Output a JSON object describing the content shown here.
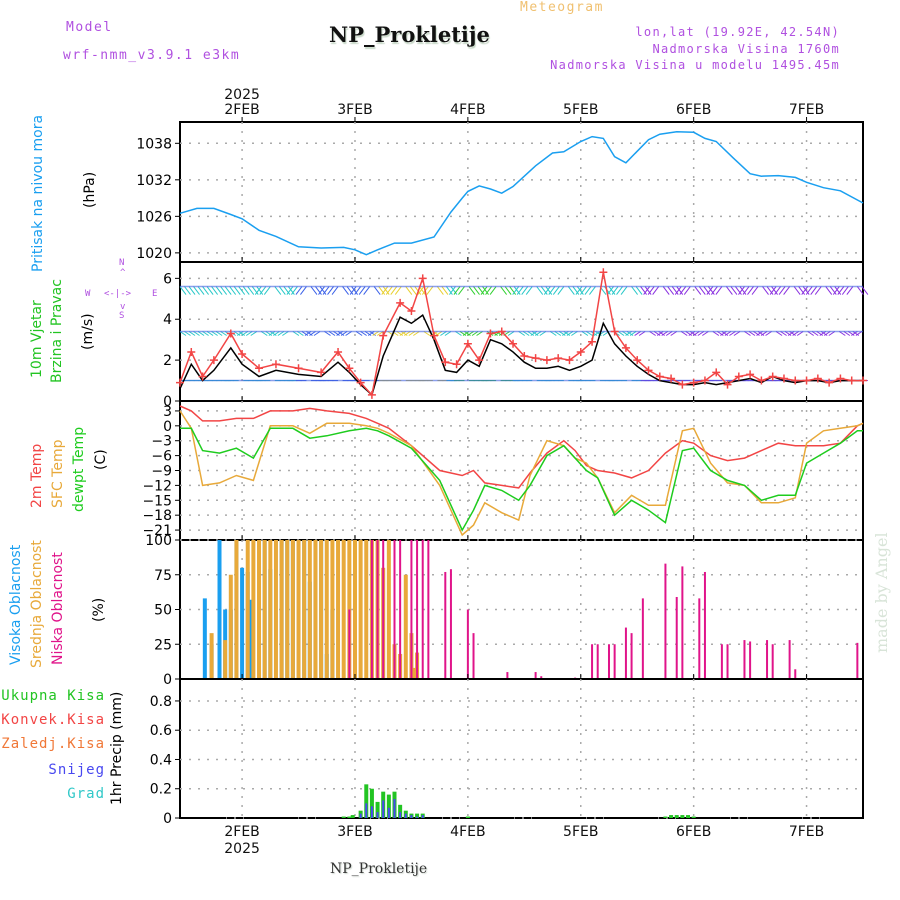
{
  "header": {
    "model_label": "Model",
    "model_name": "wrf-nmm_v3.9.1 e3km",
    "title": "NP_Prokletije",
    "meteogram_label": "Meteogram",
    "lonlat": "lon,lat (19.92E, 42.54N)",
    "elevation": "Nadmorska Visina 1760m",
    "model_elevation": "Nadmorska Visina u modelu 1495.45m",
    "footer_title": "NP_Prokletije",
    "watermark": "made by Angel"
  },
  "colors": {
    "pressure": "#1a9ff0",
    "temp2m": "#f24545",
    "sfc_temp": "#e8a93a",
    "dewpt": "#1ecc1e",
    "cloud_high": "#1a9ff0",
    "cloud_mid": "#e8a93a",
    "cloud_low": "#e0148a",
    "precip_total": "#22c422",
    "precip_conv": "#f24545",
    "precip_frz": "#f07838",
    "precip_snow": "#4848f0",
    "precip_hail": "#30c8c8",
    "labels_purple": "#b050e0",
    "meteogram_label": "#f0c070",
    "wind_speed_line": "#000000",
    "wind_gust": "#f24545"
  },
  "time_axis": {
    "year_label": "2025",
    "day_labels": [
      "2FEB",
      "3FEB",
      "4FEB",
      "5FEB",
      "6FEB",
      "7FEB"
    ],
    "start_day_offset": -0.55,
    "end_day_offset": 5.5
  },
  "chart_data": [
    {
      "type": "line",
      "name": "pressure",
      "ylabel_title": "Pritisak na nivou mora",
      "ylabel_unit": "(hPa)",
      "yticks": [
        1020,
        1026,
        1032,
        1038
      ],
      "ylim": [
        1018.5,
        1041.5
      ],
      "grid": true,
      "x_days": [
        -0.55,
        -0.4,
        -0.25,
        -0.1,
        0.0,
        0.15,
        0.3,
        0.5,
        0.7,
        0.9,
        1.0,
        1.1,
        1.2,
        1.35,
        1.5,
        1.7,
        1.85,
        1.95,
        2.0,
        2.1,
        2.2,
        2.3,
        2.4,
        2.5,
        2.6,
        2.75,
        2.85,
        3.0,
        3.1,
        3.2,
        3.3,
        3.4,
        3.6,
        3.7,
        3.85,
        4.0,
        4.1,
        4.2,
        4.35,
        4.5,
        4.6,
        4.75,
        4.9,
        5.0,
        5.15,
        5.3,
        5.5
      ],
      "series": [
        {
          "name": "SLP",
          "values": [
            1026.5,
            1027.3,
            1027.3,
            1026.3,
            1025.6,
            1023.7,
            1022.7,
            1021.0,
            1020.8,
            1020.9,
            1020.5,
            1019.7,
            1020.5,
            1021.6,
            1021.6,
            1022.6,
            1026.7,
            1029.0,
            1030.1,
            1031.0,
            1030.5,
            1029.8,
            1030.9,
            1032.6,
            1034.3,
            1036.4,
            1036.6,
            1038.3,
            1039.1,
            1038.8,
            1035.8,
            1034.8,
            1038.6,
            1039.5,
            1039.9,
            1039.8,
            1038.8,
            1038.3,
            1035.6,
            1033.0,
            1032.6,
            1032.7,
            1032.4,
            1031.6,
            1030.7,
            1030.2,
            1028.2
          ]
        }
      ]
    },
    {
      "type": "line",
      "name": "wind",
      "ylabel_title": [
        "10m Vjetar",
        "Brzina i Pravac"
      ],
      "ylabel_unit": "(m/s)",
      "compass": {
        "N": "N",
        "S": "S",
        "W": "W",
        "E": "E"
      },
      "yticks": [
        0,
        2,
        4,
        6
      ],
      "ylim": [
        0,
        6.8
      ],
      "grid": true,
      "x_days": [
        -0.55,
        -0.45,
        -0.35,
        -0.25,
        -0.1,
        0.0,
        0.15,
        0.3,
        0.5,
        0.7,
        0.85,
        0.95,
        1.05,
        1.15,
        1.25,
        1.4,
        1.5,
        1.6,
        1.7,
        1.8,
        1.9,
        2.0,
        2.1,
        2.2,
        2.3,
        2.4,
        2.5,
        2.6,
        2.7,
        2.8,
        2.9,
        3.0,
        3.1,
        3.2,
        3.3,
        3.4,
        3.5,
        3.6,
        3.7,
        3.8,
        3.9,
        4.0,
        4.1,
        4.2,
        4.3,
        4.4,
        4.5,
        4.6,
        4.7,
        4.8,
        4.9,
        5.0,
        5.1,
        5.2,
        5.3,
        5.4,
        5.5
      ],
      "series": [
        {
          "name": "speed",
          "values": [
            0.6,
            1.8,
            1.0,
            1.5,
            2.6,
            1.8,
            1.2,
            1.5,
            1.3,
            1.2,
            1.9,
            1.4,
            0.8,
            0.3,
            2.2,
            4.1,
            3.8,
            4.2,
            3.0,
            1.5,
            1.4,
            2.0,
            1.7,
            3.0,
            2.8,
            2.4,
            1.9,
            1.6,
            1.6,
            1.7,
            1.5,
            1.7,
            2.0,
            3.8,
            2.8,
            2.2,
            1.7,
            1.3,
            1.0,
            0.9,
            0.8,
            0.8,
            0.9,
            0.8,
            0.9,
            1.0,
            1.1,
            0.9,
            1.2,
            1.0,
            0.9,
            1.0,
            1.0,
            0.9,
            1.0,
            1.0,
            1.0
          ]
        },
        {
          "name": "gust",
          "values": [
            0.9,
            2.4,
            1.2,
            2.0,
            3.3,
            2.3,
            1.6,
            1.8,
            1.6,
            1.4,
            2.4,
            1.6,
            0.9,
            0.3,
            3.2,
            4.8,
            4.4,
            6.0,
            3.2,
            1.9,
            1.8,
            2.8,
            2.0,
            3.3,
            3.4,
            2.8,
            2.2,
            2.1,
            2.0,
            2.1,
            2.0,
            2.4,
            2.9,
            6.3,
            3.4,
            2.6,
            2.0,
            1.5,
            1.2,
            1.1,
            0.8,
            0.9,
            1.0,
            1.4,
            0.8,
            1.2,
            1.3,
            1.0,
            1.2,
            1.1,
            1.0,
            1.0,
            1.1,
            0.9,
            1.1,
            1.0,
            1.0
          ]
        }
      ]
    },
    {
      "type": "line",
      "name": "temperature",
      "ylabel_title": [
        "2m Temp",
        "SFC Temp",
        "dewpt Temp"
      ],
      "ylabel_unit": "(C)",
      "yticks": [
        3,
        0,
        -3,
        -6,
        -9,
        -12,
        -15,
        -18,
        -21
      ],
      "ylim": [
        -23,
        5
      ],
      "grid": true,
      "x_days": [
        -0.55,
        -0.45,
        -0.35,
        -0.2,
        -0.05,
        0.1,
        0.25,
        0.3,
        0.45,
        0.6,
        0.75,
        0.95,
        1.1,
        1.2,
        1.3,
        1.5,
        1.75,
        1.95,
        2.05,
        2.15,
        2.3,
        2.45,
        2.55,
        2.7,
        2.85,
        2.95,
        3.05,
        3.15,
        3.3,
        3.45,
        3.6,
        3.75,
        3.9,
        4.0,
        4.15,
        4.3,
        4.45,
        4.6,
        4.75,
        4.9,
        5.0,
        5.15,
        5.3,
        5.45,
        5.5
      ],
      "series": [
        {
          "name": "2m Temp",
          "values": [
            4.0,
            3.0,
            1.0,
            1.0,
            1.5,
            1.5,
            3.0,
            3.0,
            3.0,
            3.5,
            3.0,
            2.5,
            1.5,
            0.5,
            -0.5,
            -4.0,
            -9.0,
            -10.0,
            -9.0,
            -11.5,
            -12.0,
            -12.5,
            -9.5,
            -5.5,
            -3.0,
            -5.0,
            -8.0,
            -9.0,
            -9.5,
            -10.5,
            -9.0,
            -5.5,
            -3.0,
            -3.5,
            -6.0,
            -7.0,
            -6.5,
            -5.0,
            -3.5,
            -4.0,
            -4.0,
            -4.0,
            -3.5,
            0.0,
            0.5
          ]
        },
        {
          "name": "SFC Temp",
          "values": [
            3.0,
            -0.5,
            -12.0,
            -11.5,
            -10.0,
            -11.0,
            0.0,
            0.0,
            0.0,
            -1.5,
            0.5,
            0.5,
            0.0,
            -0.5,
            -1.5,
            -4.0,
            -12.0,
            -22.0,
            -20.0,
            -15.5,
            -17.5,
            -19.0,
            -10.0,
            -3.0,
            -4.0,
            -6.5,
            -7.5,
            -10.5,
            -17.5,
            -14.0,
            -16.0,
            -16.0,
            -1.0,
            -0.5,
            -7.5,
            -11.5,
            -12.0,
            -15.5,
            -15.5,
            -14.5,
            -3.5,
            -1.0,
            -0.5,
            0.0,
            0.5
          ]
        },
        {
          "name": "dewpt Temp",
          "values": [
            -0.5,
            -0.5,
            -5.0,
            -5.5,
            -4.5,
            -6.5,
            -0.5,
            -0.5,
            -0.5,
            -2.5,
            -2.0,
            -1.0,
            -0.5,
            -1.0,
            -2.0,
            -4.5,
            -11.0,
            -21.0,
            -17.0,
            -12.0,
            -13.0,
            -15.0,
            -12.0,
            -6.0,
            -4.0,
            -6.5,
            -9.0,
            -10.5,
            -18.0,
            -15.0,
            -17.0,
            -19.5,
            -5.0,
            -4.5,
            -9.0,
            -11.0,
            -12.0,
            -15.0,
            -14.0,
            -14.0,
            -7.5,
            -5.5,
            -3.5,
            -1.0,
            -1.0
          ]
        }
      ]
    },
    {
      "type": "bar",
      "name": "cloud_cover",
      "ylabel_title": [
        "Visoka Oblacnost",
        "Srednja Oblacnost",
        "Niska Oblacnost"
      ],
      "ylabel_unit": "(%)",
      "yticks": [
        0,
        25,
        50,
        75,
        100
      ],
      "ylim": [
        0,
        100
      ],
      "grid": true,
      "series": [
        {
          "name": "Visoka Oblacnost",
          "points": [
            [
              -0.33,
              58
            ],
            [
              -0.27,
              25
            ],
            [
              -0.2,
              100
            ],
            [
              -0.15,
              50
            ],
            [
              -0.1,
              50
            ],
            [
              -0.05,
              100
            ],
            [
              0.0,
              80
            ],
            [
              0.05,
              77
            ],
            [
              0.08,
              57
            ],
            [
              0.2,
              100
            ],
            [
              0.25,
              79
            ],
            [
              0.35,
              100
            ],
            [
              0.4,
              100
            ],
            [
              0.45,
              100
            ],
            [
              0.55,
              100
            ],
            [
              0.6,
              70
            ],
            [
              0.65,
              100
            ],
            [
              0.7,
              100
            ],
            [
              0.75,
              18
            ],
            [
              0.8,
              50
            ]
          ]
        },
        {
          "name": "Srednja Oblacnost",
          "points": [
            [
              -0.27,
              33
            ],
            [
              -0.15,
              28
            ],
            [
              -0.1,
              75
            ],
            [
              -0.05,
              100
            ],
            [
              0.05,
              100
            ],
            [
              0.1,
              100
            ],
            [
              0.15,
              100
            ],
            [
              0.2,
              100
            ],
            [
              0.25,
              100
            ],
            [
              0.3,
              100
            ],
            [
              0.35,
              100
            ],
            [
              0.4,
              100
            ],
            [
              0.45,
              100
            ],
            [
              0.5,
              100
            ],
            [
              0.55,
              100
            ],
            [
              0.6,
              100
            ],
            [
              0.65,
              100
            ],
            [
              0.7,
              100
            ],
            [
              0.75,
              100
            ],
            [
              0.8,
              100
            ],
            [
              0.85,
              100
            ],
            [
              0.9,
              100
            ],
            [
              0.95,
              100
            ],
            [
              1.0,
              100
            ],
            [
              1.05,
              100
            ],
            [
              1.1,
              100
            ],
            [
              1.15,
              100
            ],
            [
              1.2,
              100
            ],
            [
              1.25,
              80
            ],
            [
              1.3,
              100
            ],
            [
              1.35,
              25
            ],
            [
              1.4,
              18
            ],
            [
              1.45,
              75
            ],
            [
              1.5,
              33
            ],
            [
              1.53,
              8
            ],
            [
              1.55,
              19
            ]
          ]
        },
        {
          "name": "Niska Oblacnost",
          "points": [
            [
              0.95,
              50
            ],
            [
              1.15,
              100
            ],
            [
              1.2,
              100
            ],
            [
              1.25,
              100
            ],
            [
              1.35,
              100
            ],
            [
              1.4,
              100
            ],
            [
              1.5,
              100
            ],
            [
              1.55,
              100
            ],
            [
              1.6,
              100
            ],
            [
              1.65,
              100
            ],
            [
              1.8,
              77
            ],
            [
              1.85,
              79
            ],
            [
              2.0,
              50
            ],
            [
              2.05,
              33
            ],
            [
              2.35,
              5
            ],
            [
              2.6,
              5
            ],
            [
              2.65,
              2
            ],
            [
              2.95,
              1
            ],
            [
              3.1,
              25
            ],
            [
              3.15,
              25
            ],
            [
              3.25,
              25
            ],
            [
              3.3,
              25
            ],
            [
              3.4,
              37
            ],
            [
              3.45,
              33
            ],
            [
              3.55,
              58
            ],
            [
              3.75,
              83
            ],
            [
              3.85,
              59
            ],
            [
              3.9,
              81
            ],
            [
              4.05,
              58
            ],
            [
              4.1,
              77
            ],
            [
              4.25,
              25
            ],
            [
              4.3,
              25
            ],
            [
              4.45,
              28
            ],
            [
              4.5,
              27
            ],
            [
              4.65,
              28
            ],
            [
              4.7,
              25
            ],
            [
              4.85,
              28
            ],
            [
              4.9,
              7
            ],
            [
              5.45,
              26
            ]
          ]
        }
      ]
    },
    {
      "type": "bar",
      "name": "precipitation",
      "ylabel_unit": "1hr Precip (mm)",
      "legend": [
        "Ukupna Kisa",
        "Konvek.Kisa",
        "Zaledj.Kisa",
        "Snijeg",
        "Grad"
      ],
      "yticks": [
        0,
        0.2,
        0.4,
        0.6,
        0.8
      ],
      "ylim": [
        0,
        0.95
      ],
      "grid": true,
      "series": [
        {
          "name": "Ukupna Kisa",
          "points": [
            [
              0.9,
              0.01
            ],
            [
              0.95,
              0.01
            ],
            [
              0.98,
              0.02
            ],
            [
              1.05,
              0.05
            ],
            [
              1.1,
              0.23
            ],
            [
              1.15,
              0.2
            ],
            [
              1.2,
              0.11
            ],
            [
              1.25,
              0.18
            ],
            [
              1.3,
              0.16
            ],
            [
              1.35,
              0.18
            ],
            [
              1.4,
              0.09
            ],
            [
              1.45,
              0.05
            ],
            [
              1.5,
              0.03
            ],
            [
              1.55,
              0.03
            ],
            [
              1.6,
              0.03
            ],
            [
              2.0,
              0.01
            ],
            [
              3.75,
              0.01
            ],
            [
              3.8,
              0.02
            ],
            [
              3.85,
              0.02
            ],
            [
              3.9,
              0.02
            ],
            [
              3.95,
              0.02
            ],
            [
              4.0,
              0.01
            ]
          ]
        },
        {
          "name": "Snijeg",
          "points": [
            [
              1.05,
              0.03
            ],
            [
              1.1,
              0.1
            ],
            [
              1.15,
              0.08
            ],
            [
              1.2,
              0.04
            ],
            [
              1.25,
              0.12
            ],
            [
              1.3,
              0.07
            ],
            [
              1.35,
              0.13
            ],
            [
              1.4,
              0.04
            ],
            [
              1.45,
              0.03
            ],
            [
              1.5,
              0.02
            ],
            [
              1.55,
              0.01
            ],
            [
              1.6,
              0.02
            ]
          ]
        }
      ]
    }
  ]
}
